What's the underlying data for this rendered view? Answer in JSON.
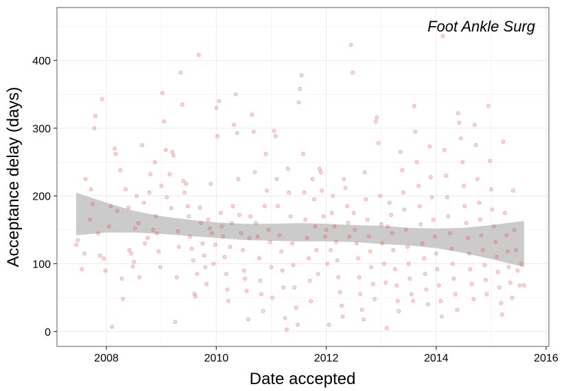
{
  "chart_data": {
    "type": "scatter",
    "title": "",
    "annotation": "Foot Ankle Surg",
    "xlabel": "Date accepted",
    "ylabel": "Acceptance delay (days)",
    "xlim": [
      2007.1,
      2016.05
    ],
    "ylim": [
      -22,
      478
    ],
    "x_ticks": [
      2008,
      2010,
      2012,
      2014,
      2016
    ],
    "x_tick_labels": [
      "2008",
      "2010",
      "2012",
      "2014",
      "2016"
    ],
    "y_ticks": [
      0,
      100,
      200,
      300,
      400
    ],
    "y_tick_labels": [
      "0",
      "100",
      "200",
      "300",
      "400"
    ],
    "grid": true,
    "legend": "none",
    "colors": {
      "points": "#e8312a",
      "ribbon": "#c8c8c8",
      "panel_border": "#7f7f7f",
      "grid": "#ebebeb"
    },
    "smooth": {
      "x": [
        2007.45,
        2008.0,
        2008.5,
        2009.0,
        2009.5,
        2010.0,
        2010.5,
        2011.0,
        2011.5,
        2012.0,
        2012.5,
        2013.0,
        2013.5,
        2014.0,
        2014.5,
        2015.0,
        2015.6
      ],
      "lower": [
        142,
        146,
        146,
        144,
        141,
        138,
        135,
        134,
        133,
        133,
        132,
        129,
        127,
        123,
        116,
        107,
        95
      ],
      "upper": [
        205,
        190,
        178,
        170,
        165,
        161,
        159,
        159,
        160,
        159,
        157,
        156,
        153,
        152,
        153,
        157,
        163
      ]
    },
    "points": [
      [
        2007.45,
        128
      ],
      [
        2007.48,
        135
      ],
      [
        2007.55,
        92
      ],
      [
        2007.6,
        115
      ],
      [
        2007.62,
        225
      ],
      [
        2007.7,
        165
      ],
      [
        2007.72,
        210
      ],
      [
        2007.75,
        188
      ],
      [
        2007.78,
        300
      ],
      [
        2007.8,
        318
      ],
      [
        2007.85,
        145
      ],
      [
        2007.88,
        112
      ],
      [
        2007.92,
        343
      ],
      [
        2007.95,
        108
      ],
      [
        2007.98,
        90
      ],
      [
        2008.05,
        155
      ],
      [
        2008.08,
        185
      ],
      [
        2008.1,
        7
      ],
      [
        2008.15,
        270
      ],
      [
        2008.17,
        262
      ],
      [
        2008.2,
        178
      ],
      [
        2008.25,
        238
      ],
      [
        2008.28,
        78
      ],
      [
        2008.3,
        48
      ],
      [
        2008.35,
        210
      ],
      [
        2008.4,
        183
      ],
      [
        2008.42,
        120
      ],
      [
        2008.45,
        115
      ],
      [
        2008.48,
        96
      ],
      [
        2008.5,
        103
      ],
      [
        2008.52,
        152
      ],
      [
        2008.55,
        200
      ],
      [
        2008.58,
        160
      ],
      [
        2008.6,
        80
      ],
      [
        2008.65,
        275
      ],
      [
        2008.68,
        190
      ],
      [
        2008.7,
        130
      ],
      [
        2008.75,
        138
      ],
      [
        2008.78,
        205
      ],
      [
        2008.8,
        232
      ],
      [
        2008.85,
        150
      ],
      [
        2008.88,
        250
      ],
      [
        2008.9,
        170
      ],
      [
        2008.92,
        145
      ],
      [
        2008.95,
        118
      ],
      [
        2008.98,
        95
      ],
      [
        2009.0,
        215
      ],
      [
        2009.02,
        352
      ],
      [
        2009.05,
        310
      ],
      [
        2009.08,
        268
      ],
      [
        2009.1,
        198
      ],
      [
        2009.15,
        232
      ],
      [
        2009.18,
        182
      ],
      [
        2009.2,
        265
      ],
      [
        2009.22,
        260
      ],
      [
        2009.25,
        14
      ],
      [
        2009.28,
        80
      ],
      [
        2009.3,
        148
      ],
      [
        2009.32,
        125
      ],
      [
        2009.35,
        382
      ],
      [
        2009.38,
        335
      ],
      [
        2009.4,
        222
      ],
      [
        2009.42,
        205
      ],
      [
        2009.45,
        218
      ],
      [
        2009.48,
        185
      ],
      [
        2009.5,
        170
      ],
      [
        2009.52,
        140
      ],
      [
        2009.55,
        122
      ],
      [
        2009.58,
        105
      ],
      [
        2009.6,
        56
      ],
      [
        2009.62,
        52
      ],
      [
        2009.65,
        85
      ],
      [
        2009.68,
        408
      ],
      [
        2009.7,
        183
      ],
      [
        2009.72,
        160
      ],
      [
        2009.75,
        130
      ],
      [
        2009.78,
        112
      ],
      [
        2009.8,
        95
      ],
      [
        2009.82,
        70
      ],
      [
        2009.85,
        165
      ],
      [
        2009.88,
        152
      ],
      [
        2009.9,
        218
      ],
      [
        2009.92,
        145
      ],
      [
        2009.95,
        100
      ],
      [
        2009.98,
        128
      ],
      [
        2010.0,
        330
      ],
      [
        2010.02,
        288
      ],
      [
        2010.05,
        340
      ],
      [
        2010.08,
        175
      ],
      [
        2010.1,
        155
      ],
      [
        2010.12,
        140
      ],
      [
        2010.15,
        110
      ],
      [
        2010.18,
        85
      ],
      [
        2010.2,
        62
      ],
      [
        2010.22,
        45
      ],
      [
        2010.25,
        125
      ],
      [
        2010.28,
        160
      ],
      [
        2010.3,
        185
      ],
      [
        2010.32,
        305
      ],
      [
        2010.35,
        350
      ],
      [
        2010.38,
        293
      ],
      [
        2010.4,
        225
      ],
      [
        2010.42,
        172
      ],
      [
        2010.45,
        145
      ],
      [
        2010.48,
        120
      ],
      [
        2010.5,
        90
      ],
      [
        2010.52,
        78
      ],
      [
        2010.55,
        60
      ],
      [
        2010.58,
        18
      ],
      [
        2010.6,
        138
      ],
      [
        2010.62,
        170
      ],
      [
        2010.65,
        320
      ],
      [
        2010.68,
        295
      ],
      [
        2010.7,
        235
      ],
      [
        2010.72,
        160
      ],
      [
        2010.75,
        140
      ],
      [
        2010.78,
        108
      ],
      [
        2010.8,
        75
      ],
      [
        2010.82,
        55
      ],
      [
        2010.85,
        30
      ],
      [
        2010.88,
        185
      ],
      [
        2010.9,
        262
      ],
      [
        2010.92,
        208
      ],
      [
        2010.95,
        150
      ],
      [
        2010.98,
        132
      ],
      [
        2011.0,
        95
      ],
      [
        2011.02,
        50
      ],
      [
        2011.05,
        296
      ],
      [
        2011.08,
        288
      ],
      [
        2011.1,
        225
      ],
      [
        2011.12,
        185
      ],
      [
        2011.15,
        142
      ],
      [
        2011.18,
        118
      ],
      [
        2011.2,
        90
      ],
      [
        2011.22,
        65
      ],
      [
        2011.25,
        20
      ],
      [
        2011.28,
        3
      ],
      [
        2011.3,
        240
      ],
      [
        2011.32,
        205
      ],
      [
        2011.35,
        170
      ],
      [
        2011.38,
        130
      ],
      [
        2011.4,
        98
      ],
      [
        2011.42,
        65
      ],
      [
        2011.45,
        35
      ],
      [
        2011.48,
        10
      ],
      [
        2011.5,
        338
      ],
      [
        2011.52,
        358
      ],
      [
        2011.55,
        378
      ],
      [
        2011.58,
        262
      ],
      [
        2011.6,
        205
      ],
      [
        2011.62,
        165
      ],
      [
        2011.65,
        138
      ],
      [
        2011.68,
        108
      ],
      [
        2011.7,
        75
      ],
      [
        2011.72,
        45
      ],
      [
        2011.75,
        225
      ],
      [
        2011.78,
        195
      ],
      [
        2011.8,
        155
      ],
      [
        2011.82,
        120
      ],
      [
        2011.85,
        85
      ],
      [
        2011.88,
        240
      ],
      [
        2011.9,
        235
      ],
      [
        2011.92,
        208
      ],
      [
        2011.95,
        170
      ],
      [
        2011.98,
        140
      ],
      [
        2012.0,
        150
      ],
      [
        2012.02,
        100
      ],
      [
        2012.05,
        10
      ],
      [
        2012.08,
        120
      ],
      [
        2012.1,
        175
      ],
      [
        2012.12,
        200
      ],
      [
        2012.15,
        155
      ],
      [
        2012.18,
        132
      ],
      [
        2012.2,
        105
      ],
      [
        2012.22,
        80
      ],
      [
        2012.25,
        58
      ],
      [
        2012.28,
        38
      ],
      [
        2012.3,
        22
      ],
      [
        2012.32,
        225
      ],
      [
        2012.35,
        212
      ],
      [
        2012.38,
        185
      ],
      [
        2012.4,
        160
      ],
      [
        2012.42,
        140
      ],
      [
        2012.45,
        423
      ],
      [
        2012.48,
        382
      ],
      [
        2012.5,
        175
      ],
      [
        2012.52,
        150
      ],
      [
        2012.55,
        130
      ],
      [
        2012.58,
        108
      ],
      [
        2012.6,
        80
      ],
      [
        2012.62,
        55
      ],
      [
        2012.65,
        32
      ],
      [
        2012.68,
        18
      ],
      [
        2012.7,
        235
      ],
      [
        2012.72,
        195
      ],
      [
        2012.75,
        165
      ],
      [
        2012.78,
        140
      ],
      [
        2012.8,
        118
      ],
      [
        2012.82,
        95
      ],
      [
        2012.85,
        70
      ],
      [
        2012.88,
        48
      ],
      [
        2012.9,
        310
      ],
      [
        2012.92,
        316
      ],
      [
        2012.95,
        278
      ],
      [
        2012.98,
        200
      ],
      [
        2013.0,
        158
      ],
      [
        2013.02,
        130
      ],
      [
        2013.05,
        100
      ],
      [
        2013.08,
        72
      ],
      [
        2013.1,
        5
      ],
      [
        2013.12,
        155
      ],
      [
        2013.15,
        190
      ],
      [
        2013.18,
        172
      ],
      [
        2013.2,
        145
      ],
      [
        2013.22,
        120
      ],
      [
        2013.25,
        92
      ],
      [
        2013.28,
        68
      ],
      [
        2013.3,
        45
      ],
      [
        2013.32,
        30
      ],
      [
        2013.35,
        265
      ],
      [
        2013.38,
        238
      ],
      [
        2013.4,
        205
      ],
      [
        2013.42,
        180
      ],
      [
        2013.45,
        150
      ],
      [
        2013.48,
        125
      ],
      [
        2013.5,
        100
      ],
      [
        2013.52,
        78
      ],
      [
        2013.55,
        55
      ],
      [
        2013.58,
        45
      ],
      [
        2013.6,
        333
      ],
      [
        2013.62,
        295
      ],
      [
        2013.65,
        250
      ],
      [
        2013.68,
        215
      ],
      [
        2013.7,
        185
      ],
      [
        2013.72,
        158
      ],
      [
        2013.75,
        130
      ],
      [
        2013.78,
        108
      ],
      [
        2013.8,
        85
      ],
      [
        2013.82,
        62
      ],
      [
        2013.85,
        40
      ],
      [
        2013.88,
        273
      ],
      [
        2013.9,
        228
      ],
      [
        2013.92,
        198
      ],
      [
        2013.95,
        165
      ],
      [
        2013.98,
        140
      ],
      [
        2014.0,
        115
      ],
      [
        2014.02,
        92
      ],
      [
        2014.05,
        68
      ],
      [
        2014.08,
        45
      ],
      [
        2014.1,
        22
      ],
      [
        2014.12,
        436
      ],
      [
        2014.15,
        268
      ],
      [
        2014.18,
        230
      ],
      [
        2014.2,
        198
      ],
      [
        2014.22,
        170
      ],
      [
        2014.25,
        145
      ],
      [
        2014.28,
        122
      ],
      [
        2014.3,
        100
      ],
      [
        2014.32,
        78
      ],
      [
        2014.35,
        55
      ],
      [
        2014.38,
        32
      ],
      [
        2014.4,
        322
      ],
      [
        2014.42,
        308
      ],
      [
        2014.45,
        285
      ],
      [
        2014.48,
        250
      ],
      [
        2014.5,
        215
      ],
      [
        2014.52,
        185
      ],
      [
        2014.55,
        160
      ],
      [
        2014.58,
        138
      ],
      [
        2014.6,
        115
      ],
      [
        2014.62,
        92
      ],
      [
        2014.65,
        70
      ],
      [
        2014.68,
        48
      ],
      [
        2014.7,
        305
      ],
      [
        2014.72,
        275
      ],
      [
        2014.75,
        225
      ],
      [
        2014.78,
        190
      ],
      [
        2014.8,
        165
      ],
      [
        2014.82,
        142
      ],
      [
        2014.85,
        120
      ],
      [
        2014.88,
        98
      ],
      [
        2014.9,
        76
      ],
      [
        2014.92,
        55
      ],
      [
        2014.95,
        333
      ],
      [
        2014.98,
        252
      ],
      [
        2015.0,
        210
      ],
      [
        2015.02,
        180
      ],
      [
        2015.05,
        155
      ],
      [
        2015.08,
        132
      ],
      [
        2015.1,
        110
      ],
      [
        2015.12,
        88
      ],
      [
        2015.15,
        65
      ],
      [
        2015.18,
        42
      ],
      [
        2015.2,
        25
      ],
      [
        2015.22,
        280
      ],
      [
        2015.25,
        175
      ],
      [
        2015.28,
        142
      ],
      [
        2015.3,
        118
      ],
      [
        2015.32,
        95
      ],
      [
        2015.35,
        72
      ],
      [
        2015.38,
        50
      ],
      [
        2015.4,
        208
      ],
      [
        2015.42,
        150
      ],
      [
        2015.45,
        120
      ],
      [
        2015.48,
        90
      ],
      [
        2015.52,
        68
      ],
      [
        2015.55,
        100
      ],
      [
        2015.6,
        68
      ]
    ]
  }
}
